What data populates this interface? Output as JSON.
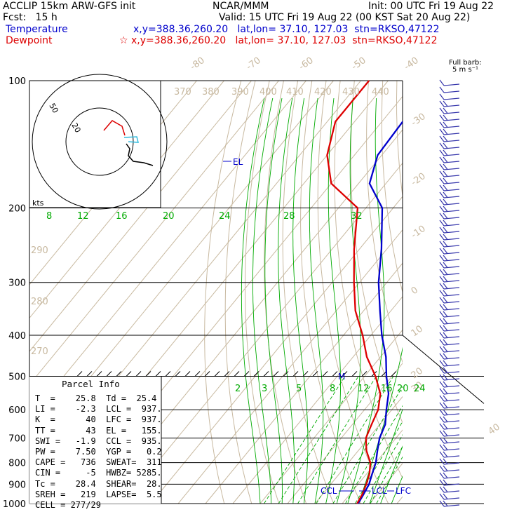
{
  "header": {
    "model_line": "ACCLIP 15km ARW-GFS init",
    "org": "NCAR/MMM",
    "init": "Init: 00 UTC Fri 19 Aug 22",
    "fcst": "Fcst:   15 h",
    "valid": "Valid: 15 UTC Fri 19 Aug 22 (00 KST Sat 20 Aug 22)",
    "temperature_label": "Temperature",
    "temperature_info": "x,y=388.36,260.20   lat,lon= 37.10, 127.03  stn=RKSO,47122",
    "dewpoint_label": "Dewpoint",
    "dewpoint_info": "☆ x,y=388.36,260.20   lat,lon= 37.10, 127.03  stn=RKSO,47122",
    "barb_label_1": "Full barb:",
    "barb_label_2": "5 m s⁻¹"
  },
  "colors": {
    "temperature": "#0000cc",
    "dewpoint": "#dd0000",
    "isotherm": "#c8b9a0",
    "mixing_ratio": "#00aa00",
    "isobar": "#000000",
    "barb": "#3333aa",
    "hodo_red": "#dd0000",
    "hodo_cyan": "#33bbdd"
  },
  "chart_data": {
    "type": "line",
    "title": "",
    "ylabel": "",
    "pressure_levels": [
      100,
      200,
      300,
      400,
      500,
      600,
      700,
      800,
      900,
      1000
    ],
    "y_tick_labels": [
      "100",
      "200",
      "300",
      "400",
      "500",
      "600",
      "700",
      "800",
      "900",
      "1000"
    ],
    "isotherm_labels_top": [
      "-80",
      "-70",
      "-60",
      "-50",
      "-40"
    ],
    "isotherm_labels_right": [
      "-30",
      "-20",
      "-10",
      "0",
      "10",
      "20",
      "30",
      "40"
    ],
    "theta_labels_top": [
      "370",
      "380",
      "390",
      "400",
      "410",
      "420",
      "430",
      "440"
    ],
    "theta_labels_left": [
      "290",
      "280",
      "270"
    ],
    "mixing_ratio_labels_upper": [
      "8",
      "12",
      "16",
      "20",
      "24",
      "28",
      "32"
    ],
    "mixing_ratio_labels_lower": [
      "2",
      "3",
      "5",
      "8",
      "12",
      "16",
      "20",
      "24"
    ],
    "series": [
      {
        "name": "Temperature",
        "points": [
          [
            100,
            -73.5
          ],
          [
            150,
            -71.5
          ],
          [
            175,
            -66
          ],
          [
            200,
            -54
          ],
          [
            250,
            -42
          ],
          [
            300,
            -33
          ],
          [
            350,
            -24
          ],
          [
            400,
            -16
          ],
          [
            450,
            -8
          ],
          [
            500,
            -2
          ],
          [
            550,
            4
          ],
          [
            600,
            8
          ],
          [
            650,
            12
          ],
          [
            700,
            14
          ],
          [
            750,
            17
          ],
          [
            800,
            20
          ],
          [
            850,
            22
          ],
          [
            900,
            24
          ],
          [
            950,
            25
          ],
          [
            1000,
            25.8
          ]
        ]
      },
      {
        "name": "Dewpoint",
        "points": [
          [
            100,
            -97
          ],
          [
            125,
            -97
          ],
          [
            150,
            -90
          ],
          [
            175,
            -80
          ],
          [
            200,
            -63
          ],
          [
            250,
            -52
          ],
          [
            300,
            -42
          ],
          [
            350,
            -33
          ],
          [
            400,
            -23
          ],
          [
            450,
            -15
          ],
          [
            500,
            -6
          ],
          [
            550,
            1
          ],
          [
            600,
            5
          ],
          [
            650,
            7
          ],
          [
            700,
            9
          ],
          [
            750,
            13
          ],
          [
            800,
            18
          ],
          [
            850,
            21
          ],
          [
            900,
            23
          ],
          [
            950,
            24.5
          ],
          [
            1000,
            25.4
          ]
        ]
      }
    ],
    "annotations": [
      "EL",
      "M",
      "CCL",
      "LCL",
      "LFC"
    ],
    "hodograph": {
      "ring_labels": [
        "50",
        "20"
      ],
      "units": "kts"
    }
  },
  "parcel": {
    "title": "Parcel Info",
    "rows": [
      "T  =    25.8  Td =  25.4",
      "LI =    -2.3  LCL =  937.",
      "K  =      40  LFC =  937.",
      "TT =      43  EL =   155.",
      "SWI =   -1.9  CCL =  935.",
      "PW =    7.50  YGP =   0.2",
      "CAPE =   736  SWEAT=  311",
      "CIN =     -5  HWBZ= 5285.",
      "Tc =    28.4  SHEAR=  28.",
      "SREH =   219  LAPSE=  5.5",
      "CELL = 277/29"
    ]
  }
}
